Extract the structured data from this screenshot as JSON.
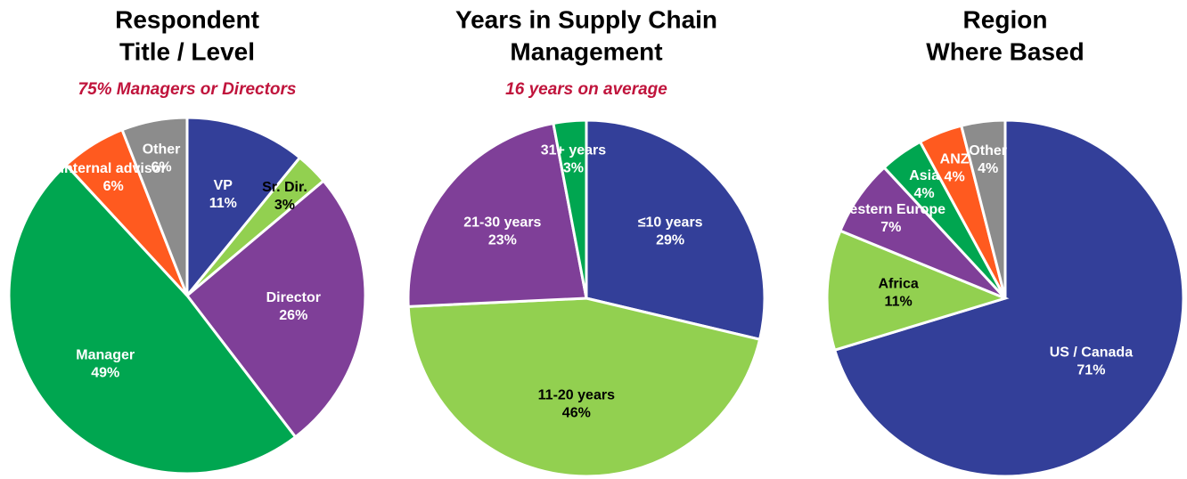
{
  "chart_data": [
    {
      "type": "pie",
      "title": [
        "Respondent",
        "Title / Level"
      ],
      "subtitle": "75% Managers or Directors",
      "categories": [
        "VP",
        "Sr. Dir.",
        "Director",
        "Manager",
        "Internal advisor",
        "Other"
      ],
      "values": [
        11,
        3,
        26,
        49,
        6,
        6
      ],
      "value_labels": [
        "11%",
        "3%",
        "26%",
        "49%",
        "6%",
        "6%"
      ],
      "colors": [
        "#333f99",
        "#92d050",
        "#7f3f98",
        "#00a650",
        "#ff5a1f",
        "#8c8c8c"
      ]
    },
    {
      "type": "pie",
      "title": [
        "Years in Supply Chain",
        "Management"
      ],
      "subtitle": "16 years on average",
      "categories": [
        "≤10 years",
        "11-20 years",
        "21-30 years",
        "31+ years"
      ],
      "values": [
        29,
        46,
        23,
        3
      ],
      "value_labels": [
        "29%",
        "46%",
        "23%",
        "3%"
      ],
      "colors": [
        "#333f99",
        "#92d050",
        "#7f3f98",
        "#00a650"
      ]
    },
    {
      "type": "pie",
      "title": [
        "Region",
        "Where Based"
      ],
      "categories": [
        "US / Canada",
        "Africa",
        "Western Europe",
        "Asia",
        "ANZ",
        "Other"
      ],
      "values": [
        71,
        11,
        7,
        4,
        4,
        4
      ],
      "value_labels": [
        "71%",
        "11%",
        "7%",
        "4%",
        "4%",
        "4%"
      ],
      "colors": [
        "#333f99",
        "#92d050",
        "#7f3f98",
        "#00a650",
        "#ff5a1f",
        "#8c8c8c"
      ]
    }
  ]
}
